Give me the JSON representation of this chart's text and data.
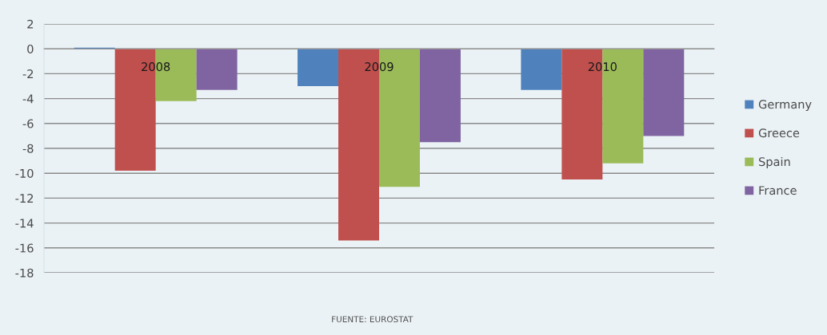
{
  "chart_data": {
    "type": "bar",
    "categories": [
      "2008",
      "2009",
      "2010"
    ],
    "series": [
      {
        "name": "Germany",
        "color": "#4f81bd",
        "values": [
          0.1,
          -3.0,
          -3.3
        ]
      },
      {
        "name": "Greece",
        "color": "#c0504d",
        "values": [
          -9.8,
          -15.4,
          -10.5
        ]
      },
      {
        "name": "Spain",
        "color": "#9bbb59",
        "values": [
          -4.2,
          -11.1,
          -9.2
        ]
      },
      {
        "name": "France",
        "color": "#8064a2",
        "values": [
          -3.3,
          -7.5,
          -7.0
        ]
      }
    ],
    "ylim": [
      -18,
      2
    ],
    "yticks": [
      2,
      0,
      -2,
      -4,
      -6,
      -8,
      -10,
      -12,
      -14,
      -16,
      -18
    ],
    "grid": "y",
    "legend": "right",
    "annotations": [
      "FUENTE: EUROSTAT"
    ]
  }
}
